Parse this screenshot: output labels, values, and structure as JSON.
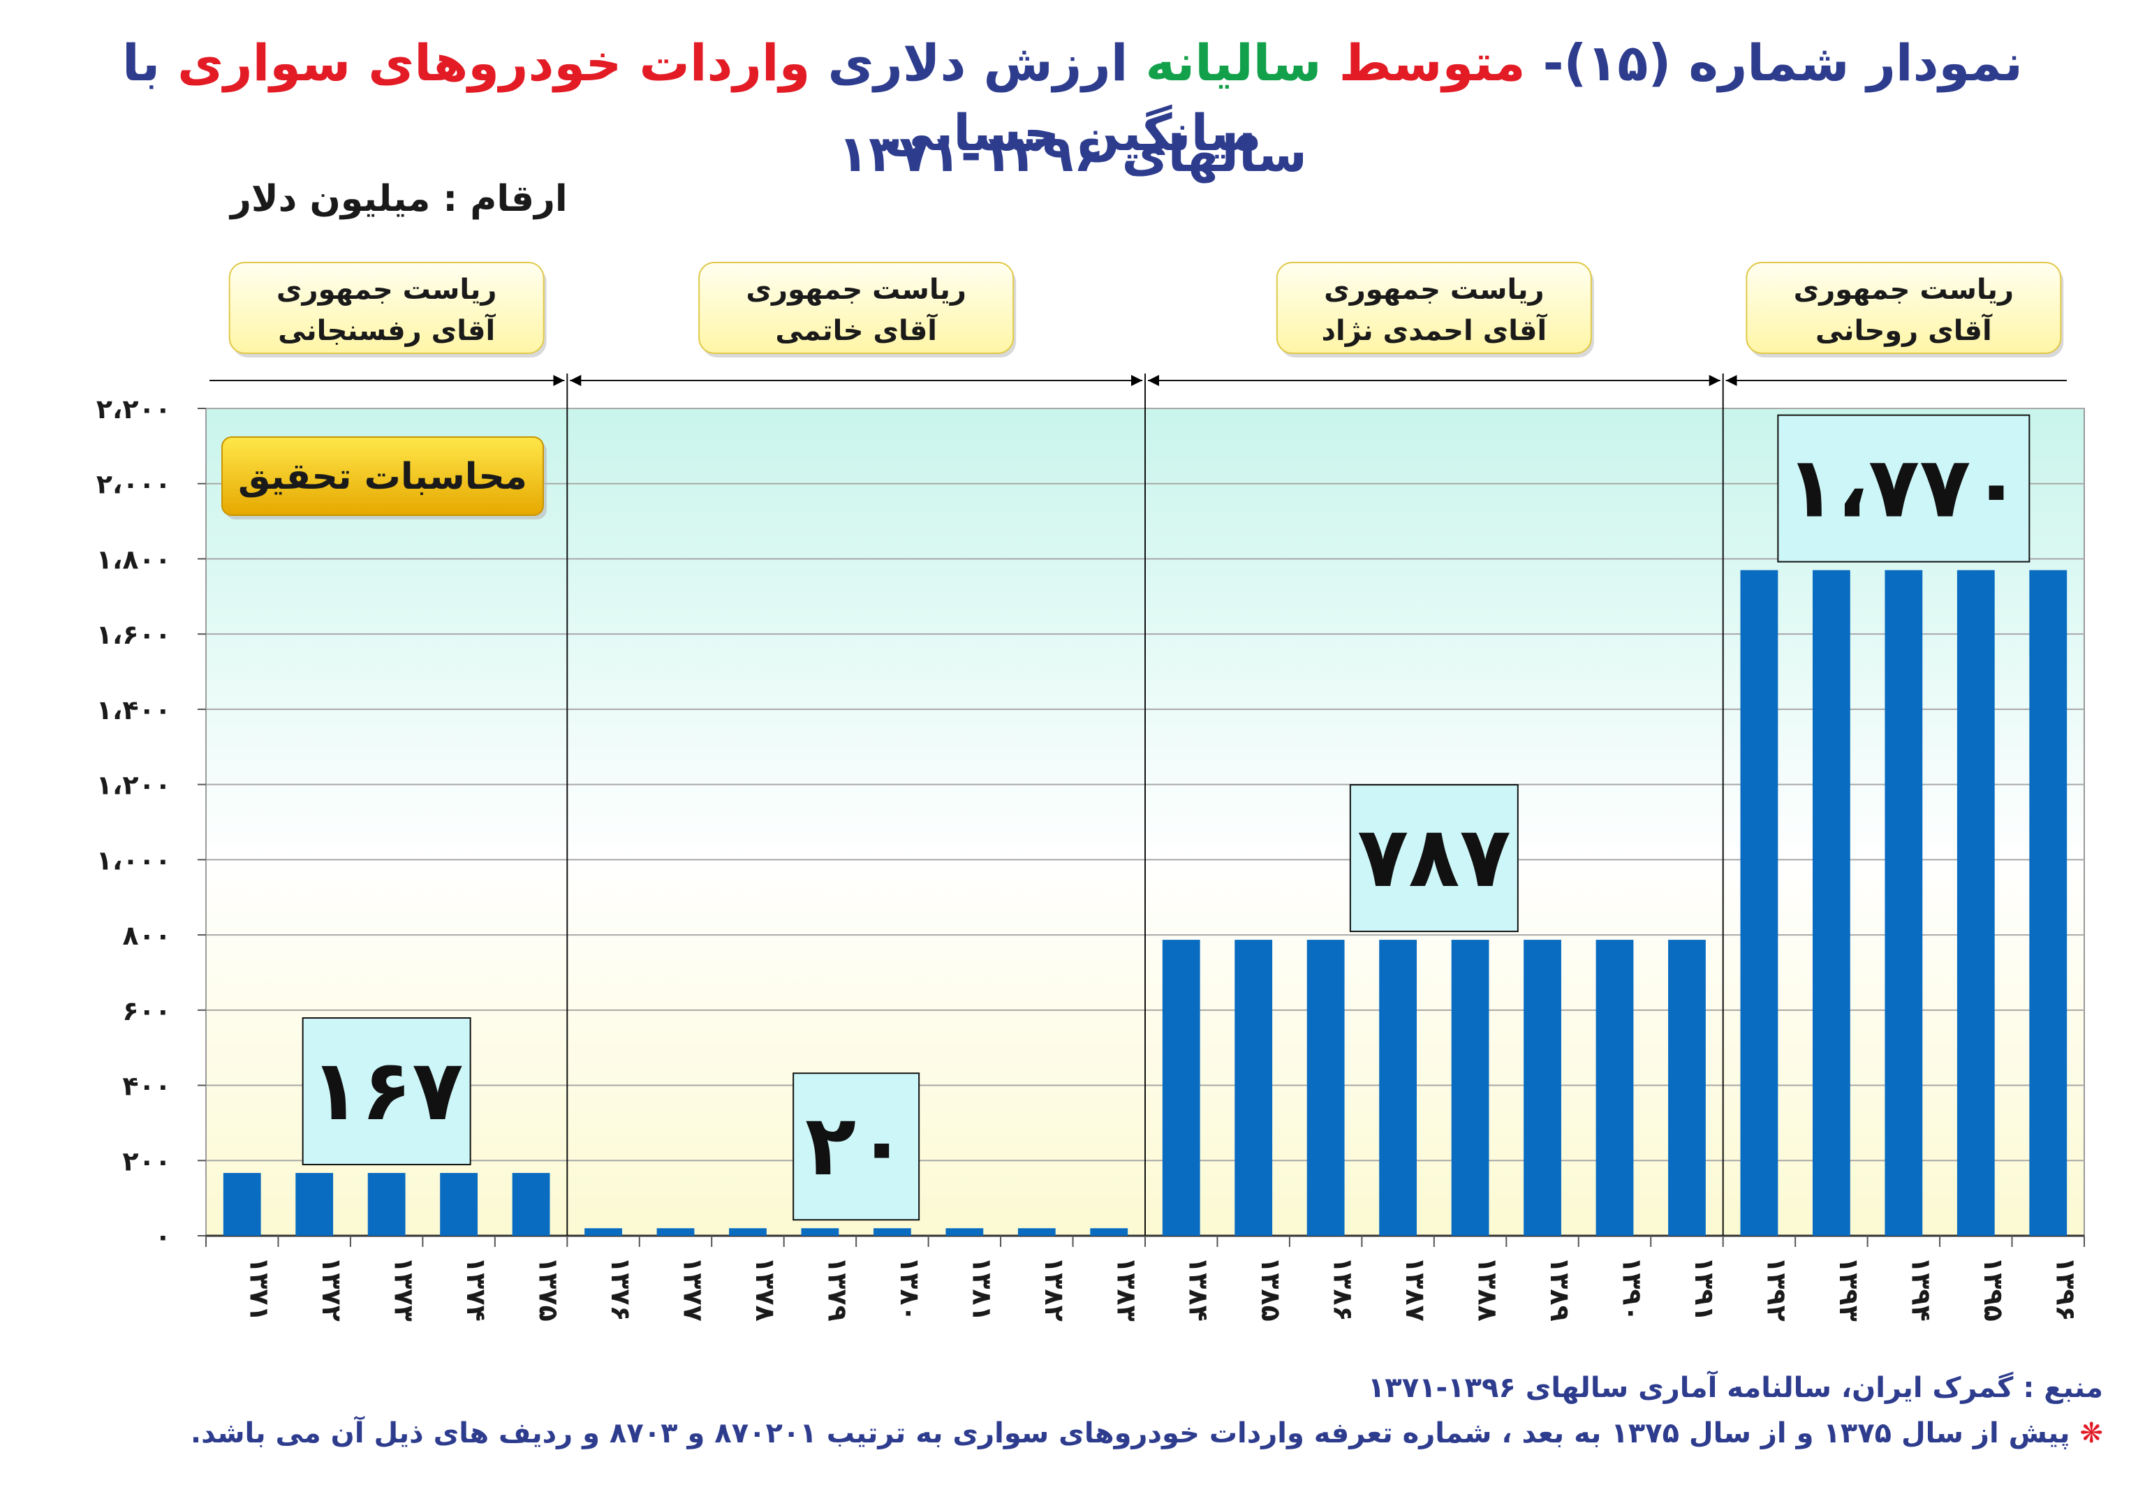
{
  "title": {
    "line1_parts": [
      {
        "text": "نمودار شماره (۱۵)- ",
        "color": "blue"
      },
      {
        "text": "متوسط ",
        "color": "red"
      },
      {
        "text": "سالیانه ",
        "color": "green"
      },
      {
        "text": "ارزش دلاری ",
        "color": "blue"
      },
      {
        "text": "واردات خودروهای سواری ",
        "color": "red"
      },
      {
        "text": "با میانگین حسابی",
        "color": "blue"
      }
    ],
    "line2": "سالهای ۱۳۹۶-۱۳۷۱"
  },
  "unit_label": "ارقام : میلیون دلار",
  "badge": "محاسبات تحقیق",
  "footer": {
    "source": "منبع : گمرک ایران، سالنامه آماری سالهای ۱۳۹۶-۱۳۷۱",
    "note_symbol": "❋",
    "note": "پیش از سال ۱۳۷۵ و از سال ۱۳۷۵ به بعد ، شماره تعرفه واردات خودروهای سواری به ترتیب ۸۷۰۲۰۱ و ۸۷۰۳ و ردیف های ذیل آن می باشد."
  },
  "colors": {
    "bar": "#0A6CC1",
    "title_blue": "#2E3C8E",
    "title_red": "#E21B25",
    "title_green": "#12A14A",
    "bg_top": "#C9F5EC",
    "bg_mid": "#FFFFFF",
    "bg_bottom": "#FCFAD2",
    "label_box": "#CDF6F8",
    "presidency_box": "#FFF6A6",
    "badge_top": "#FFE74A",
    "badge_bottom": "#E6A800"
  },
  "chart_data": {
    "type": "bar",
    "ylim": [
      0,
      2200
    ],
    "yticks": [
      0,
      200,
      400,
      600,
      800,
      1000,
      1200,
      1400,
      1600,
      1800,
      2000,
      2200
    ],
    "ytick_labels": [
      "۰",
      "۲۰۰",
      "۴۰۰",
      "۶۰۰",
      "۸۰۰",
      "۱،۰۰۰",
      "۱،۲۰۰",
      "۱،۴۰۰",
      "۱،۶۰۰",
      "۱،۸۰۰",
      "۲،۰۰۰",
      "۲،۲۰۰"
    ],
    "grid": true,
    "categories": [
      "۱۳۷۱",
      "۱۳۷۲",
      "۱۳۷۳",
      "۱۳۷۴",
      "۱۳۷۵",
      "۱۳۷۶",
      "۱۳۷۷",
      "۱۳۷۸",
      "۱۳۷۹",
      "۱۳۸۰",
      "۱۳۸۱",
      "۱۳۸۲",
      "۱۳۸۳",
      "۱۳۸۴",
      "۱۳۸۵",
      "۱۳۸۶",
      "۱۳۸۷",
      "۱۳۸۸",
      "۱۳۸۹",
      "۱۳۹۰",
      "۱۳۹۱",
      "۱۳۹۲",
      "۱۳۹۳",
      "۱۳۹۴",
      "۱۳۹۵",
      "۱۳۹۶"
    ],
    "values": [
      167,
      167,
      167,
      167,
      167,
      20,
      20,
      20,
      20,
      20,
      20,
      20,
      20,
      787,
      787,
      787,
      787,
      787,
      787,
      787,
      787,
      1770,
      1770,
      1770,
      1770,
      1770
    ],
    "periods": [
      {
        "line1": "ریاست جمهوری",
        "line2": "آقای رفسنجانی",
        "start": 0,
        "end": 4,
        "average": "۱۶۷"
      },
      {
        "line1": "ریاست جمهوری",
        "line2": "آقای خاتمی",
        "start": 5,
        "end": 12,
        "average": "۲۰"
      },
      {
        "line1": "ریاست جمهوری",
        "line2": "آقای احمدی نژاد",
        "start": 13,
        "end": 20,
        "average": "۷۸۷"
      },
      {
        "line1": "ریاست جمهوری",
        "line2": "آقای روحانی",
        "start": 21,
        "end": 25,
        "average": "۱،۷۷۰"
      }
    ]
  }
}
